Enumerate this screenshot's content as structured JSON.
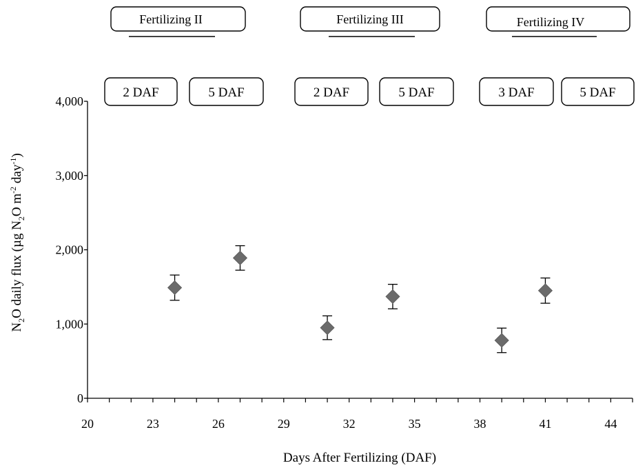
{
  "chart_data": {
    "type": "scatter",
    "title": "",
    "xlabel": "Days After Fertilizing (DAF)",
    "ylabel": {
      "parts": [
        "N",
        "2",
        "O  daily flux (µg N",
        "2",
        "O m",
        "-2",
        " day",
        "-1",
        ")"
      ],
      "text": "N2O daily flux (µg N2O m-2 day-1)"
    },
    "xlim": [
      20,
      45
    ],
    "ylim": [
      0,
      4000
    ],
    "x_ticks": [
      20,
      23,
      26,
      29,
      32,
      35,
      38,
      41,
      44
    ],
    "y_ticks": [
      {
        "value": 0,
        "label": "0"
      },
      {
        "value": 1000,
        "label": "1,000"
      },
      {
        "value": 2000,
        "label": "2,000"
      },
      {
        "value": 3000,
        "label": "3,000"
      },
      {
        "value": 4000,
        "label": "4,000"
      }
    ],
    "marker": "diamond",
    "marker_color": "#6b6b6b",
    "points": [
      {
        "x": 24,
        "y": 1490,
        "err": 170
      },
      {
        "x": 27,
        "y": 1890,
        "err": 165
      },
      {
        "x": 31,
        "y": 950,
        "err": 160
      },
      {
        "x": 34,
        "y": 1370,
        "err": 165
      },
      {
        "x": 39,
        "y": 780,
        "err": 165
      },
      {
        "x": 41,
        "y": 1450,
        "err": 170
      }
    ],
    "annotations": {
      "phases": [
        {
          "label": "Fertilizing II"
        },
        {
          "label": "Fertilizing III"
        },
        {
          "label": "Fertilizing IV"
        }
      ],
      "daf_boxes": [
        {
          "label": "2 DAF"
        },
        {
          "label": "5 DAF"
        },
        {
          "label": "2 DAF"
        },
        {
          "label": "5 DAF"
        },
        {
          "label": "3 DAF"
        },
        {
          "label": "5 DAF"
        }
      ]
    },
    "grid": false,
    "legend": "none"
  }
}
